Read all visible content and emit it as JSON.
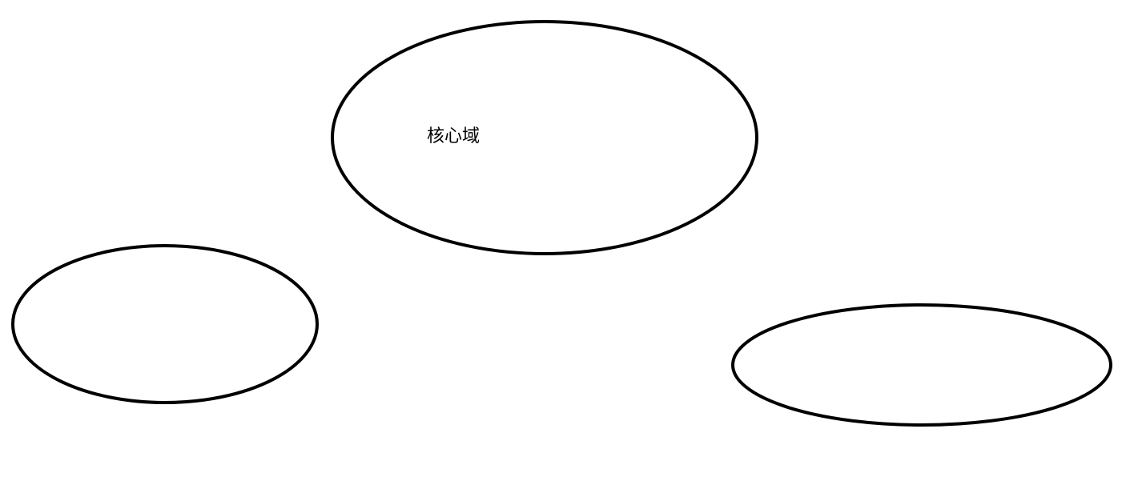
{
  "diagram": {
    "core_label": "核心域",
    "stroke_color": "#000000",
    "background_color": "#ffffff"
  }
}
